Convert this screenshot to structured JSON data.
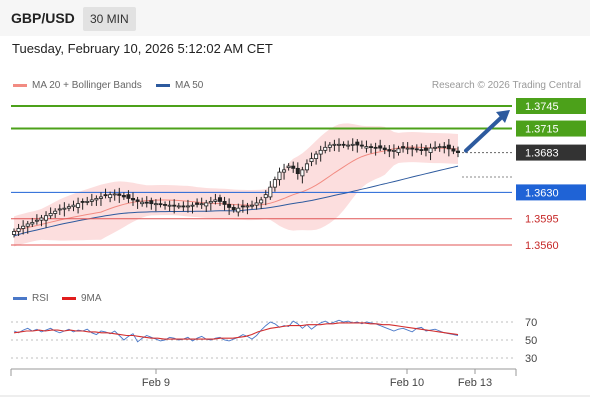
{
  "header": {
    "pair": "GBP/USD",
    "timeframe": "30 MIN"
  },
  "timestamp": "Tuesday, February 10, 2026 5:12:02 AM CET",
  "legend": {
    "ma20": {
      "label": "MA 20 + Bollinger Bands",
      "color": "#f28b82"
    },
    "ma50": {
      "label": "MA 50",
      "color": "#2d5a9e"
    }
  },
  "credit": "Research © 2026 Trading Central",
  "rsi_legend": {
    "rsi": "RSI",
    "ma9": "9MA"
  },
  "chart_data": {
    "type": "candlestick",
    "price_axis": {
      "range": [
        1.3525,
        1.3765
      ]
    },
    "levels": [
      {
        "value": "1.3745",
        "kind": "resistance",
        "color": "#4ca11a"
      },
      {
        "value": "1.3715",
        "kind": "resistance",
        "color": "#4ca11a"
      },
      {
        "value": "1.3683",
        "kind": "last",
        "color": "#333333"
      },
      {
        "value": "1.3630",
        "kind": "pivot",
        "color": "#1f63d6"
      },
      {
        "value": "1.3595",
        "kind": "support",
        "color": "#e05656"
      },
      {
        "value": "1.3560",
        "kind": "support",
        "color": "#e05656"
      }
    ],
    "closes": [
      1.3578,
      1.3582,
      1.3585,
      1.3588,
      1.359,
      1.3593,
      1.3596,
      1.3599,
      1.3602,
      1.3605,
      1.3608,
      1.3609,
      1.3611,
      1.3613,
      1.3615,
      1.3617,
      1.3618,
      1.362,
      1.3622,
      1.3624,
      1.3626,
      1.3627,
      1.3628,
      1.3626,
      1.3624,
      1.3622,
      1.362,
      1.3618,
      1.3617,
      1.3616,
      1.3615,
      1.3615,
      1.3614,
      1.3613,
      1.3613,
      1.3612,
      1.3612,
      1.3611,
      1.3612,
      1.3613,
      1.3614,
      1.3615,
      1.3616,
      1.3618,
      1.362,
      1.3618,
      1.3614,
      1.361,
      1.3607,
      1.3609,
      1.3611,
      1.3612,
      1.3613,
      1.3616,
      1.362,
      1.3627,
      1.3637,
      1.3647,
      1.3657,
      1.366,
      1.3665,
      1.3662,
      1.3655,
      1.366,
      1.3668,
      1.3675,
      1.3681,
      1.3686,
      1.369,
      1.3693,
      1.3694,
      1.3694,
      1.3693,
      1.3693,
      1.3694,
      1.3693,
      1.3692,
      1.3691,
      1.369,
      1.3689,
      1.3689,
      1.3687,
      1.3685,
      1.3686,
      1.3688,
      1.3689,
      1.3689,
      1.3688,
      1.3687,
      1.3686,
      1.3686,
      1.3689,
      1.369,
      1.3691,
      1.369,
      1.3688,
      1.3685,
      1.3683
    ],
    "projection": {
      "from": 1.3683,
      "to": 1.3745
    },
    "x_labels": [
      "Feb 9",
      "Feb 10",
      "Feb 13"
    ],
    "rsi": {
      "y_ticks": [
        "70",
        "50",
        "30"
      ],
      "values": [
        60,
        58,
        61,
        63,
        60,
        62,
        59,
        61,
        63,
        60,
        58,
        60,
        62,
        59,
        61,
        60,
        62,
        58,
        56,
        60,
        59,
        57,
        60,
        55,
        50,
        54,
        57,
        48,
        52,
        55,
        53,
        51,
        49,
        50,
        53,
        52,
        50,
        51,
        53,
        49,
        52,
        54,
        51,
        50,
        52,
        53,
        50,
        49,
        51,
        53,
        56,
        54,
        51,
        55,
        61,
        66,
        70,
        68,
        64,
        66,
        65,
        71,
        68,
        63,
        67,
        62,
        66,
        69,
        71,
        68,
        70,
        72,
        70,
        71,
        69,
        70,
        68,
        70,
        69,
        68,
        66,
        64,
        62,
        60,
        62,
        63,
        61,
        59,
        63,
        64,
        60,
        61,
        62,
        60,
        58,
        57,
        56,
        55
      ],
      "ma9": [
        58,
        59,
        60,
        60,
        61,
        60,
        61,
        61,
        60,
        61,
        60,
        60,
        59,
        59,
        58,
        58,
        57,
        56,
        55,
        55,
        54,
        53,
        52,
        52,
        51,
        51,
        51,
        51,
        51,
        51,
        51,
        51,
        51,
        52,
        52,
        52,
        53,
        54,
        56,
        59,
        61,
        63,
        64,
        65,
        66,
        66,
        66,
        67,
        67,
        67,
        68,
        68,
        69,
        69,
        69,
        69,
        69,
        68,
        68,
        67,
        67,
        66,
        65,
        64,
        63,
        62,
        61,
        60,
        59,
        58,
        57,
        56
      ]
    }
  }
}
